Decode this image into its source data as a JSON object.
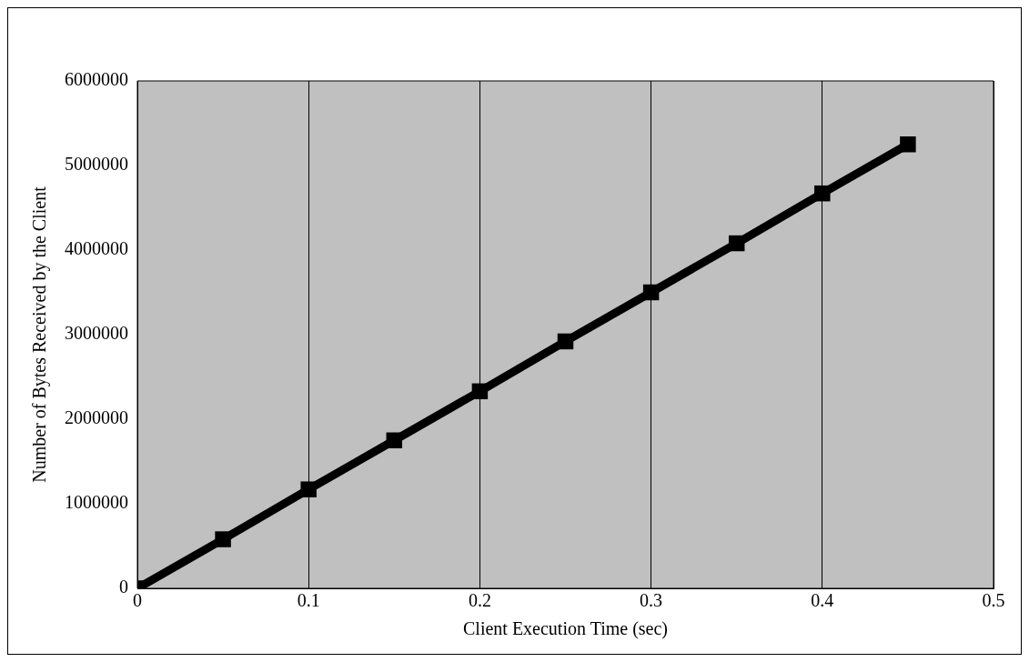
{
  "chart_data": {
    "type": "line",
    "xlabel": "Client Execution Time (sec)",
    "ylabel": "Number of Bytes Received by the Client",
    "x": [
      0,
      0.05,
      0.1,
      0.15,
      0.2,
      0.25,
      0.3,
      0.35,
      0.4,
      0.45
    ],
    "series": [
      {
        "color": "#000000",
        "values": [
          0,
          580000,
          1170000,
          1750000,
          2330000,
          2920000,
          3500000,
          4080000,
          4670000,
          5250000
        ]
      }
    ],
    "xlim": [
      0,
      0.5
    ],
    "xticks": [
      0,
      0.1,
      0.2,
      0.3,
      0.4,
      0.5
    ],
    "ylim": [
      0,
      6000000
    ],
    "yticks": [
      0,
      1000000,
      2000000,
      3000000,
      4000000,
      5000000,
      6000000
    ],
    "grid": "x",
    "legend": false,
    "marker": "square",
    "line_style": "solid"
  }
}
